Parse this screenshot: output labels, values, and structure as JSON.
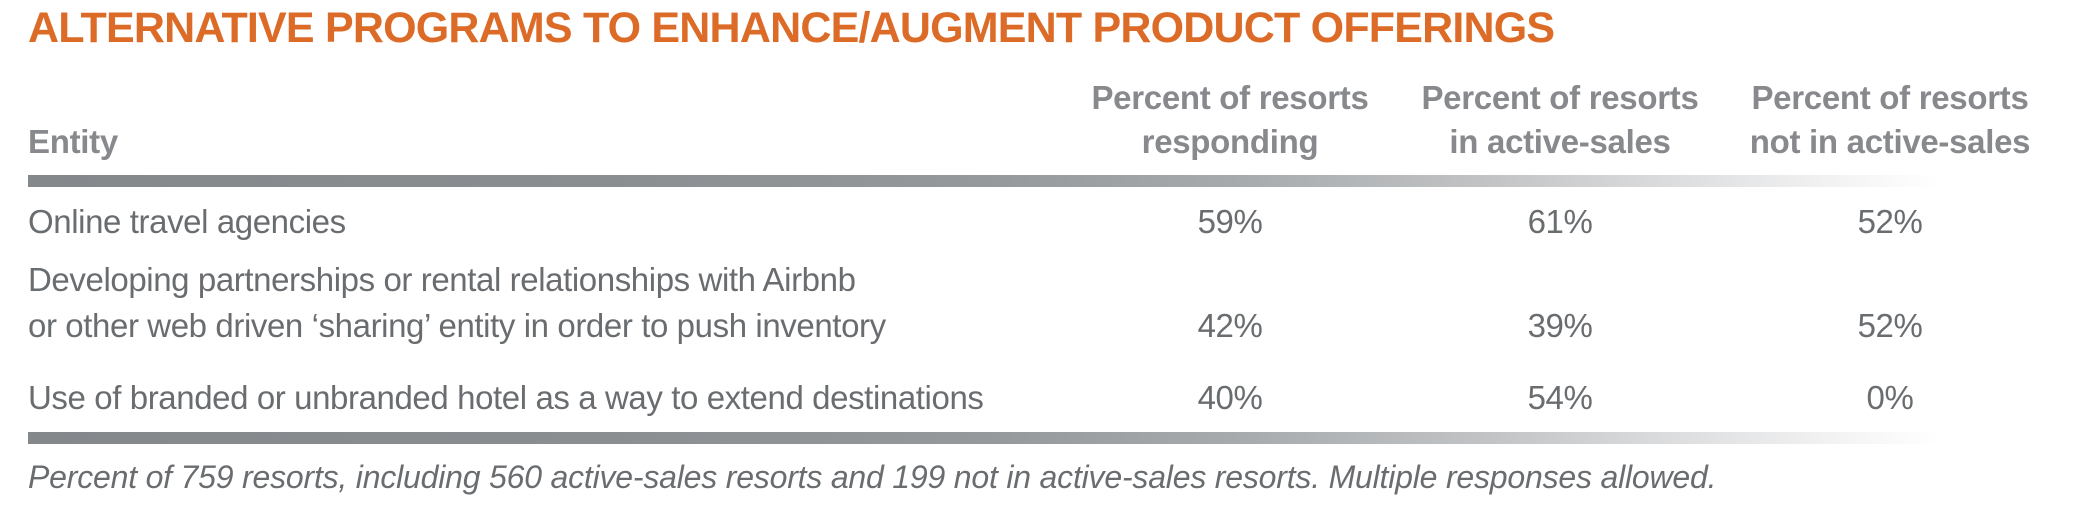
{
  "title": "ALTERNATIVE PROGRAMS TO ENHANCE/AUGMENT PRODUCT OFFERINGS",
  "colors": {
    "title_orange": "#DC6B28",
    "header_gray": "#87898C",
    "body_gray": "#6A6D70",
    "rule_gray": "#8A8E91"
  },
  "table": {
    "entity_header": "Entity",
    "column_headers": [
      {
        "line1": "Percent of resorts",
        "line2": "responding"
      },
      {
        "line1": "Percent of resorts",
        "line2": "in active-sales"
      },
      {
        "line1": "Percent of resorts",
        "line2": "not in active-sales"
      }
    ],
    "rows": [
      {
        "entity_line1": "Online travel agencies",
        "entity_line2": "",
        "values": [
          "59%",
          "61%",
          "52%"
        ]
      },
      {
        "entity_line1": "Developing partnerships or rental relationships with Airbnb",
        "entity_line2": "or other web driven ‘sharing’ entity in order to push inventory",
        "values": [
          "42%",
          "39%",
          "52%"
        ]
      },
      {
        "entity_line1": "Use of branded or unbranded hotel as a way to extend destinations",
        "entity_line2": "",
        "values": [
          "40%",
          "54%",
          "0%"
        ]
      }
    ]
  },
  "footnote": "Percent of 759 resorts, including 560 active-sales resorts and 199 not in active-sales resorts. Multiple responses allowed.",
  "chart_data": {
    "type": "table",
    "title": "ALTERNATIVE PROGRAMS TO ENHANCE/AUGMENT PRODUCT OFFERINGS",
    "columns": [
      "Entity",
      "Percent of resorts responding",
      "Percent of resorts in active-sales",
      "Percent of resorts not in active-sales"
    ],
    "rows": [
      [
        "Online travel agencies",
        "59%",
        "61%",
        "52%"
      ],
      [
        "Developing partnerships or rental relationships with Airbnb or other web driven ‘sharing’ entity in order to push inventory",
        "42%",
        "39%",
        "52%"
      ],
      [
        "Use of branded or unbranded hotel as a way to extend destinations",
        "40%",
        "54%",
        "0%"
      ]
    ],
    "footnote": "Percent of 759 resorts, including 560 active-sales resorts and 199 not in active-sales resorts. Multiple responses allowed."
  }
}
